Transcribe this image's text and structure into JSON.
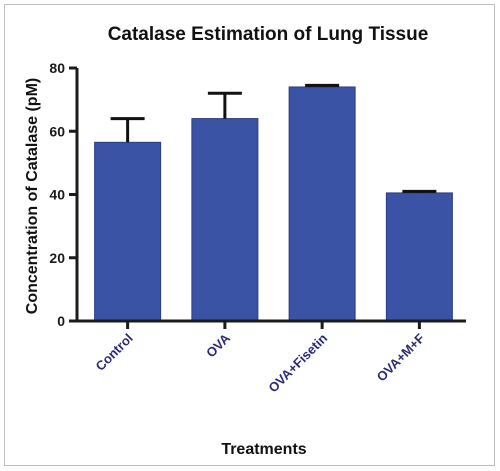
{
  "chart_data": {
    "type": "bar",
    "title": "Catalase Estimation of Lung Tissue",
    "xlabel": "Treatments",
    "ylabel": "Concentration of Catalase (pM)",
    "categories": [
      "Control",
      "OVA",
      "OVA+Fisetin",
      "OVA+M+F"
    ],
    "values": [
      56.5,
      64,
      74,
      40.5
    ],
    "errors": [
      7.5,
      8,
      0.5,
      0.5
    ],
    "ylim": [
      0,
      80
    ],
    "yticks": [
      "0",
      "20",
      "40",
      "60",
      "80"
    ],
    "grid": false,
    "legend": "none"
  },
  "colors": {
    "bar": "#3a53a4",
    "bar_edge": "#2a3d82",
    "axis": "#1b1b1b",
    "xtick_text": "#2a2a7a"
  }
}
